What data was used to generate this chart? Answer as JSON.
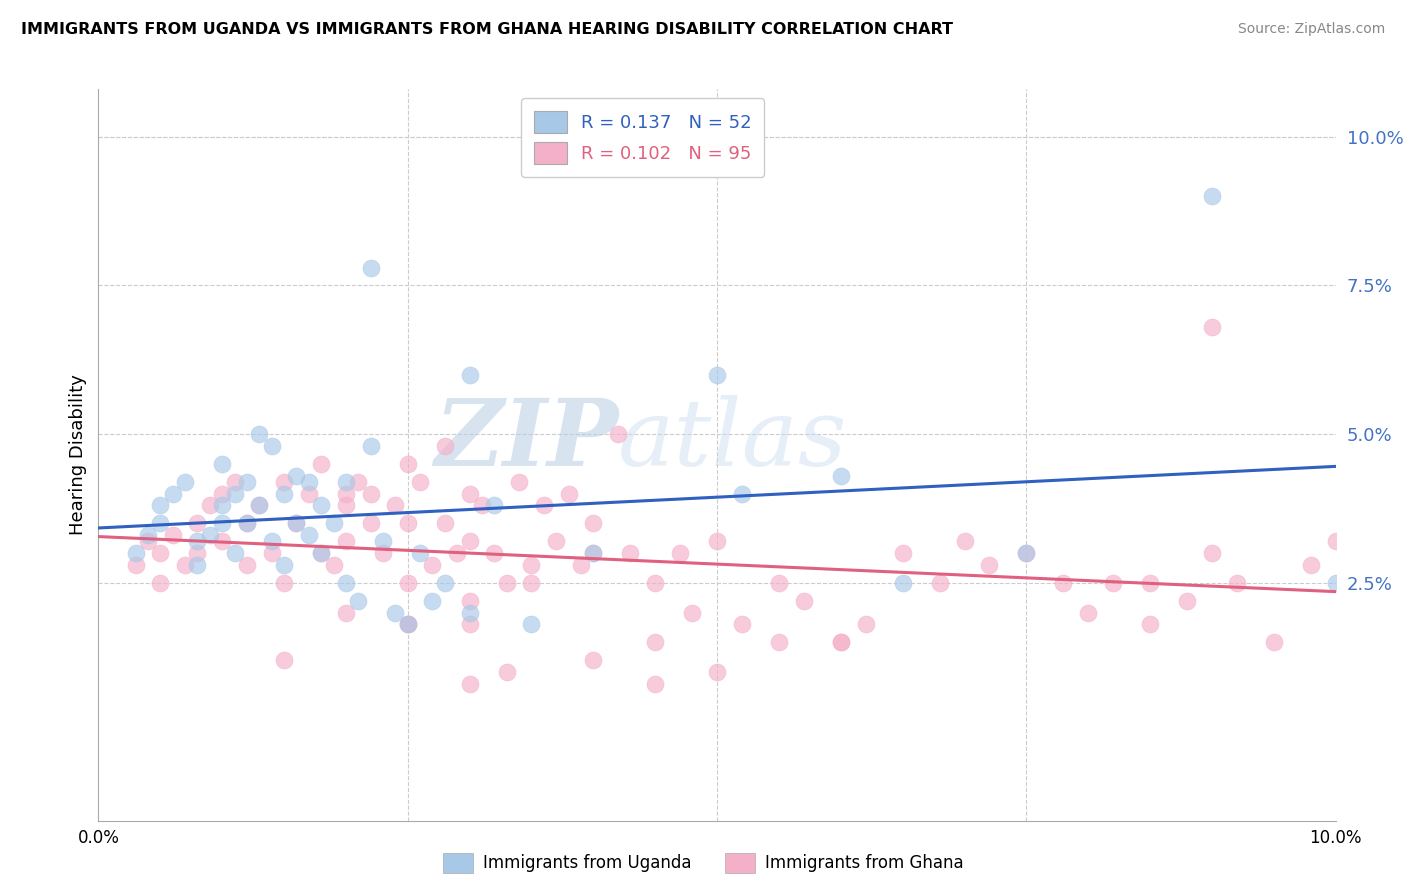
{
  "title": "IMMIGRANTS FROM UGANDA VS IMMIGRANTS FROM GHANA HEARING DISABILITY CORRELATION CHART",
  "source": "Source: ZipAtlas.com",
  "ylabel": "Hearing Disability",
  "right_yticks": [
    "10.0%",
    "7.5%",
    "5.0%",
    "2.5%"
  ],
  "right_ytick_vals": [
    0.1,
    0.075,
    0.05,
    0.025
  ],
  "xlim": [
    0.0,
    0.1
  ],
  "ylim": [
    -0.015,
    0.108
  ],
  "color_uganda": "#a8c8e8",
  "color_ghana": "#f4b0c8",
  "line_color_uganda": "#3060c0",
  "line_color_ghana": "#e06080",
  "watermark_zip": "ZIP",
  "watermark_atlas": "atlas",
  "uganda_x": [
    0.003,
    0.004,
    0.005,
    0.005,
    0.006,
    0.007,
    0.008,
    0.008,
    0.009,
    0.01,
    0.01,
    0.01,
    0.011,
    0.011,
    0.012,
    0.012,
    0.013,
    0.013,
    0.014,
    0.014,
    0.015,
    0.015,
    0.016,
    0.016,
    0.017,
    0.017,
    0.018,
    0.018,
    0.019,
    0.02,
    0.02,
    0.021,
    0.022,
    0.023,
    0.024,
    0.025,
    0.026,
    0.027,
    0.028,
    0.03,
    0.032,
    0.035,
    0.04,
    0.05,
    0.052,
    0.06,
    0.065,
    0.075,
    0.09,
    0.1,
    0.022,
    0.03
  ],
  "uganda_y": [
    0.03,
    0.033,
    0.035,
    0.038,
    0.04,
    0.042,
    0.032,
    0.028,
    0.033,
    0.045,
    0.035,
    0.038,
    0.04,
    0.03,
    0.042,
    0.035,
    0.038,
    0.05,
    0.032,
    0.048,
    0.04,
    0.028,
    0.035,
    0.043,
    0.042,
    0.033,
    0.038,
    0.03,
    0.035,
    0.042,
    0.025,
    0.022,
    0.048,
    0.032,
    0.02,
    0.018,
    0.03,
    0.022,
    0.025,
    0.02,
    0.038,
    0.018,
    0.03,
    0.06,
    0.04,
    0.043,
    0.025,
    0.03,
    0.09,
    0.025,
    0.078,
    0.06
  ],
  "ghana_x": [
    0.003,
    0.004,
    0.005,
    0.005,
    0.006,
    0.007,
    0.008,
    0.008,
    0.009,
    0.01,
    0.01,
    0.011,
    0.012,
    0.012,
    0.013,
    0.014,
    0.015,
    0.015,
    0.016,
    0.017,
    0.018,
    0.018,
    0.019,
    0.02,
    0.02,
    0.021,
    0.022,
    0.022,
    0.023,
    0.024,
    0.025,
    0.025,
    0.026,
    0.027,
    0.028,
    0.028,
    0.029,
    0.03,
    0.03,
    0.031,
    0.032,
    0.033,
    0.034,
    0.035,
    0.036,
    0.037,
    0.038,
    0.039,
    0.04,
    0.042,
    0.043,
    0.045,
    0.047,
    0.048,
    0.05,
    0.052,
    0.055,
    0.057,
    0.06,
    0.062,
    0.065,
    0.068,
    0.07,
    0.072,
    0.075,
    0.078,
    0.08,
    0.082,
    0.085,
    0.088,
    0.09,
    0.092,
    0.095,
    0.098,
    0.1,
    0.033,
    0.04,
    0.045,
    0.05,
    0.055,
    0.06,
    0.025,
    0.03,
    0.015,
    0.02,
    0.025,
    0.03,
    0.02,
    0.025,
    0.03,
    0.035,
    0.04,
    0.045,
    0.085,
    0.09
  ],
  "ghana_y": [
    0.028,
    0.032,
    0.03,
    0.025,
    0.033,
    0.028,
    0.035,
    0.03,
    0.038,
    0.04,
    0.032,
    0.042,
    0.035,
    0.028,
    0.038,
    0.03,
    0.042,
    0.025,
    0.035,
    0.04,
    0.03,
    0.045,
    0.028,
    0.038,
    0.032,
    0.042,
    0.04,
    0.035,
    0.03,
    0.038,
    0.025,
    0.045,
    0.042,
    0.028,
    0.048,
    0.035,
    0.03,
    0.04,
    0.032,
    0.038,
    0.03,
    0.025,
    0.042,
    0.028,
    0.038,
    0.032,
    0.04,
    0.028,
    0.035,
    0.05,
    0.03,
    0.025,
    0.03,
    0.02,
    0.032,
    0.018,
    0.025,
    0.022,
    0.015,
    0.018,
    0.03,
    0.025,
    0.032,
    0.028,
    0.03,
    0.025,
    0.02,
    0.025,
    0.018,
    0.022,
    0.03,
    0.025,
    0.015,
    0.028,
    0.032,
    0.01,
    0.012,
    0.008,
    0.01,
    0.015,
    0.015,
    0.018,
    0.022,
    0.012,
    0.02,
    0.018,
    0.008,
    0.04,
    0.035,
    0.018,
    0.025,
    0.03,
    0.015,
    0.025,
    0.068
  ]
}
